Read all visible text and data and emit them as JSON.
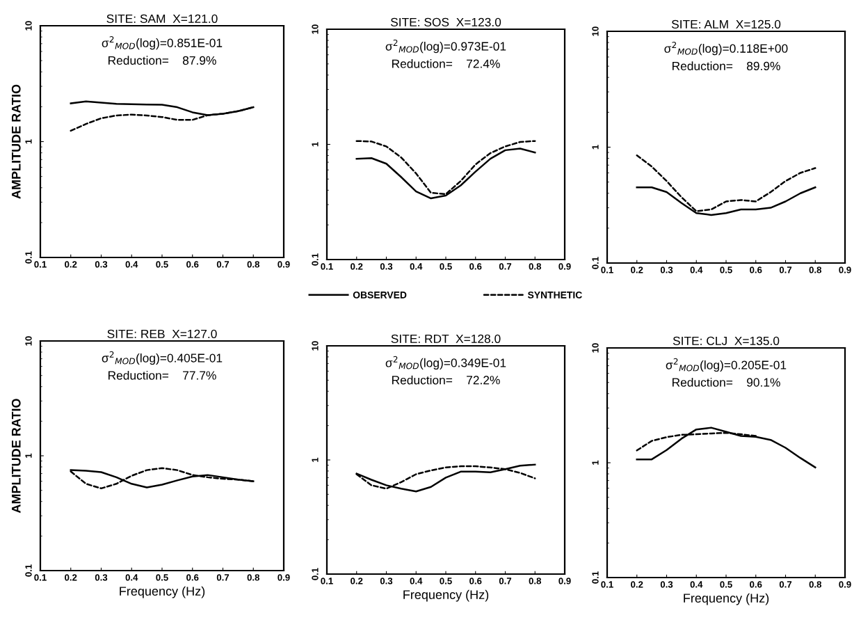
{
  "chart_data": [
    {
      "type": "line",
      "title": "SITE: SAM  X=121.0",
      "ylabel": "AMPLITUDE RATIO",
      "annotations": [
        "σ$^{2}$$_{MOD}$(log)=0.851E-01",
        "Reduction=    87.9%"
      ],
      "log": "y",
      "xlim": [
        0.1,
        0.9
      ],
      "ylim": [
        0.1,
        10
      ],
      "xticks": [
        0.1,
        0.2,
        0.3,
        0.4,
        0.5,
        0.6,
        0.7,
        0.8,
        0.9
      ],
      "yticks": [
        0.1,
        1,
        10
      ],
      "x": [
        0.2,
        0.25,
        0.3,
        0.35,
        0.4,
        0.45,
        0.5,
        0.55,
        0.6,
        0.65,
        0.7,
        0.75,
        0.8
      ],
      "series": [
        {
          "color": "#000000",
          "line_style": "solid",
          "values": [
            2.14,
            2.22,
            2.17,
            2.12,
            2.1,
            2.09,
            2.08,
            1.98,
            1.79,
            1.69,
            1.74,
            1.83,
            1.98
          ]
        },
        {
          "color": "#000000",
          "line_style": "dashed",
          "values": [
            1.24,
            1.42,
            1.59,
            1.68,
            1.71,
            1.68,
            1.63,
            1.54,
            1.54,
            1.69,
            1.74,
            1.83,
            1.98
          ]
        }
      ]
    },
    {
      "type": "line",
      "title": "SITE: SOS  X=123.0",
      "annotations": [
        "σ$^{2}$$_{MOD}$(log)=0.973E-01",
        "Reduction=    72.4%"
      ],
      "log": "y",
      "legend": "bottom",
      "xlim": [
        0.1,
        0.9
      ],
      "ylim": [
        0.1,
        10
      ],
      "xticks": [
        0.1,
        0.2,
        0.3,
        0.4,
        0.5,
        0.6,
        0.7,
        0.8,
        0.9
      ],
      "yticks": [
        0.1,
        1,
        10
      ],
      "x": [
        0.2,
        0.25,
        0.3,
        0.35,
        0.4,
        0.45,
        0.5,
        0.55,
        0.6,
        0.65,
        0.7,
        0.75,
        0.8
      ],
      "series": [
        {
          "name": "OBSERVED",
          "color": "#000000",
          "line_style": "solid",
          "values": [
            0.75,
            0.76,
            0.68,
            0.52,
            0.39,
            0.34,
            0.36,
            0.44,
            0.58,
            0.75,
            0.89,
            0.92,
            0.85
          ]
        },
        {
          "name": "SYNTHETIC",
          "color": "#000000",
          "line_style": "dashed",
          "values": [
            1.07,
            1.06,
            0.96,
            0.77,
            0.56,
            0.38,
            0.37,
            0.48,
            0.67,
            0.84,
            0.96,
            1.05,
            1.07
          ]
        }
      ]
    },
    {
      "type": "line",
      "title": "SITE: ALM  X=125.0",
      "annotations": [
        "σ$^{2}$$_{MOD}$(log)=0.118E+00",
        "Reduction=    89.9%"
      ],
      "log": "y",
      "xlim": [
        0.1,
        0.9
      ],
      "ylim": [
        0.1,
        10
      ],
      "xticks": [
        0.1,
        0.2,
        0.3,
        0.4,
        0.5,
        0.6,
        0.7,
        0.8,
        0.9
      ],
      "yticks": [
        0.1,
        1,
        10
      ],
      "x": [
        0.2,
        0.25,
        0.3,
        0.35,
        0.4,
        0.45,
        0.5,
        0.55,
        0.6,
        0.65,
        0.7,
        0.75,
        0.8
      ],
      "series": [
        {
          "color": "#000000",
          "line_style": "solid",
          "values": [
            0.45,
            0.45,
            0.41,
            0.33,
            0.27,
            0.26,
            0.27,
            0.29,
            0.29,
            0.3,
            0.34,
            0.4,
            0.45
          ]
        },
        {
          "color": "#000000",
          "line_style": "dashed",
          "values": [
            0.85,
            0.68,
            0.51,
            0.37,
            0.28,
            0.29,
            0.34,
            0.35,
            0.34,
            0.41,
            0.51,
            0.6,
            0.66
          ]
        }
      ]
    },
    {
      "type": "line",
      "title": "SITE: REB  X=127.0",
      "xlabel": "Frequency (Hz)",
      "ylabel": "AMPLITUDE RATIO",
      "annotations": [
        "σ$^{2}$$_{MOD}$(log)=0.405E-01",
        "Reduction=    77.7%"
      ],
      "log": "y",
      "xlim": [
        0.1,
        0.9
      ],
      "ylim": [
        0.1,
        10
      ],
      "xticks": [
        0.1,
        0.2,
        0.3,
        0.4,
        0.5,
        0.6,
        0.7,
        0.8,
        0.9
      ],
      "yticks": [
        0.1,
        1,
        10
      ],
      "x": [
        0.2,
        0.25,
        0.3,
        0.35,
        0.4,
        0.45,
        0.5,
        0.55,
        0.6,
        0.65,
        0.7,
        0.75,
        0.8
      ],
      "series": [
        {
          "color": "#000000",
          "line_style": "solid",
          "values": [
            0.75,
            0.74,
            0.72,
            0.65,
            0.57,
            0.53,
            0.56,
            0.61,
            0.66,
            0.68,
            0.65,
            0.62,
            0.6
          ]
        },
        {
          "color": "#000000",
          "line_style": "dashed",
          "values": [
            0.73,
            0.57,
            0.52,
            0.57,
            0.67,
            0.75,
            0.78,
            0.75,
            0.68,
            0.65,
            0.63,
            0.62,
            0.6
          ]
        }
      ]
    },
    {
      "type": "line",
      "title": "SITE: RDT  X=128.0",
      "xlabel": "Frequency (Hz)",
      "annotations": [
        "σ$^{2}$$_{MOD}$(log)=0.349E-01",
        "Reduction=    72.2%"
      ],
      "log": "y",
      "xlim": [
        0.1,
        0.9
      ],
      "ylim": [
        0.1,
        10
      ],
      "xticks": [
        0.1,
        0.2,
        0.3,
        0.4,
        0.5,
        0.6,
        0.7,
        0.8,
        0.9
      ],
      "yticks": [
        0.1,
        1,
        10
      ],
      "x": [
        0.2,
        0.25,
        0.3,
        0.35,
        0.4,
        0.45,
        0.5,
        0.55,
        0.6,
        0.65,
        0.7,
        0.75,
        0.8
      ],
      "series": [
        {
          "color": "#000000",
          "line_style": "solid",
          "values": [
            0.76,
            0.67,
            0.6,
            0.56,
            0.53,
            0.58,
            0.7,
            0.79,
            0.79,
            0.78,
            0.83,
            0.89,
            0.91
          ]
        },
        {
          "color": "#000000",
          "line_style": "dashed",
          "values": [
            0.75,
            0.6,
            0.56,
            0.64,
            0.75,
            0.81,
            0.86,
            0.88,
            0.88,
            0.86,
            0.83,
            0.77,
            0.69
          ]
        }
      ]
    },
    {
      "type": "line",
      "title": "SITE: CLJ  X=135.0",
      "xlabel": "Frequency (Hz)",
      "annotations": [
        "σ$^{2}$$_{MOD}$(log)=0.205E-01",
        "Reduction=    90.1%"
      ],
      "log": "y",
      "xlim": [
        0.1,
        0.9
      ],
      "ylim": [
        0.1,
        10
      ],
      "xticks": [
        0.1,
        0.2,
        0.3,
        0.4,
        0.5,
        0.6,
        0.7,
        0.8,
        0.9
      ],
      "yticks": [
        0.1,
        1,
        10
      ],
      "x": [
        0.2,
        0.25,
        0.3,
        0.35,
        0.4,
        0.45,
        0.5,
        0.55,
        0.6,
        0.65,
        0.7,
        0.75,
        0.8
      ],
      "series": [
        {
          "color": "#000000",
          "line_style": "solid",
          "values": [
            1.07,
            1.07,
            1.29,
            1.62,
            1.95,
            2.02,
            1.86,
            1.71,
            1.68,
            1.58,
            1.35,
            1.1,
            0.91
          ]
        },
        {
          "color": "#000000",
          "line_style": "dashed",
          "x": [
            0.2,
            0.25,
            0.3,
            0.35,
            0.4,
            0.45,
            0.5,
            0.55,
            0.6
          ],
          "values": [
            1.28,
            1.55,
            1.67,
            1.75,
            1.77,
            1.8,
            1.82,
            1.77,
            1.71
          ]
        }
      ]
    }
  ]
}
